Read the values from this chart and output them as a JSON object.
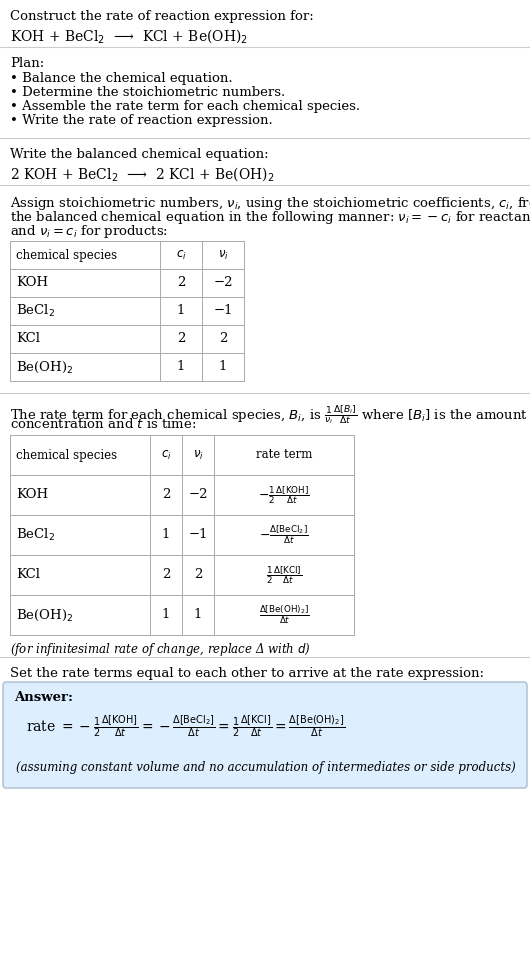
{
  "title_line1": "Construct the rate of reaction expression for:",
  "title_line2": "KOH + BeCl$_2$  ⟶  KCl + Be(OH)$_2$",
  "section_divider_color": "#cccccc",
  "background_color": "#ffffff",
  "answer_box_color": "#ddeeff",
  "answer_box_border": "#aabbcc",
  "plan_header": "Plan:",
  "plan_bullets": [
    "• Balance the chemical equation.",
    "• Determine the stoichiometric numbers.",
    "• Assemble the rate term for each chemical species.",
    "• Write the rate of reaction expression."
  ],
  "balanced_header": "Write the balanced chemical equation:",
  "balanced_eq": "2 KOH + BeCl$_2$  ⟶  2 KCl + Be(OH)$_2$",
  "stoich_intro_lines": [
    "Assign stoichiometric numbers, $\\nu_i$, using the stoichiometric coefficients, $c_i$, from",
    "the balanced chemical equation in the following manner: $\\nu_i = -c_i$ for reactants",
    "and $\\nu_i = c_i$ for products:"
  ],
  "table1_headers": [
    "chemical species",
    "$c_i$",
    "$\\nu_i$"
  ],
  "table1_rows": [
    [
      "KOH",
      "2",
      "−2"
    ],
    [
      "BeCl$_2$",
      "1",
      "−1"
    ],
    [
      "KCl",
      "2",
      "2"
    ],
    [
      "Be(OH)$_2$",
      "1",
      "1"
    ]
  ],
  "rate_term_intro_lines": [
    "The rate term for each chemical species, $B_i$, is $\\frac{1}{\\nu_i}\\frac{\\Delta[B_i]}{\\Delta t}$ where $[B_i]$ is the amount",
    "concentration and $t$ is time:"
  ],
  "table2_headers": [
    "chemical species",
    "$c_i$",
    "$\\nu_i$",
    "rate term"
  ],
  "table2_rows": [
    [
      "KOH",
      "2",
      "−2",
      "$-\\frac{1}{2}\\frac{\\Delta[\\mathrm{KOH}]}{\\Delta t}$"
    ],
    [
      "BeCl$_2$",
      "1",
      "−1",
      "$-\\frac{\\Delta[\\mathrm{BeCl_2}]}{\\Delta t}$"
    ],
    [
      "KCl",
      "2",
      "2",
      "$\\frac{1}{2}\\frac{\\Delta[\\mathrm{KCl}]}{\\Delta t}$"
    ],
    [
      "Be(OH)$_2$",
      "1",
      "1",
      "$\\frac{\\Delta[\\mathrm{Be(OH)_2}]}{\\Delta t}$"
    ]
  ],
  "infinitesimal_note": "(for infinitesimal rate of change, replace Δ with $d$)",
  "set_equal_text": "Set the rate terms equal to each other to arrive at the rate expression:",
  "answer_label": "Answer:",
  "answer_eq": "rate $= -\\frac{1}{2}\\frac{\\Delta[\\mathrm{KOH}]}{\\Delta t} = -\\frac{\\Delta[\\mathrm{BeCl_2}]}{\\Delta t} = \\frac{1}{2}\\frac{\\Delta[\\mathrm{KCl}]}{\\Delta t} = \\frac{\\Delta[\\mathrm{Be(OH)_2}]}{\\Delta t}$",
  "answer_note": "(assuming constant volume and no accumulation of intermediates or side products)"
}
